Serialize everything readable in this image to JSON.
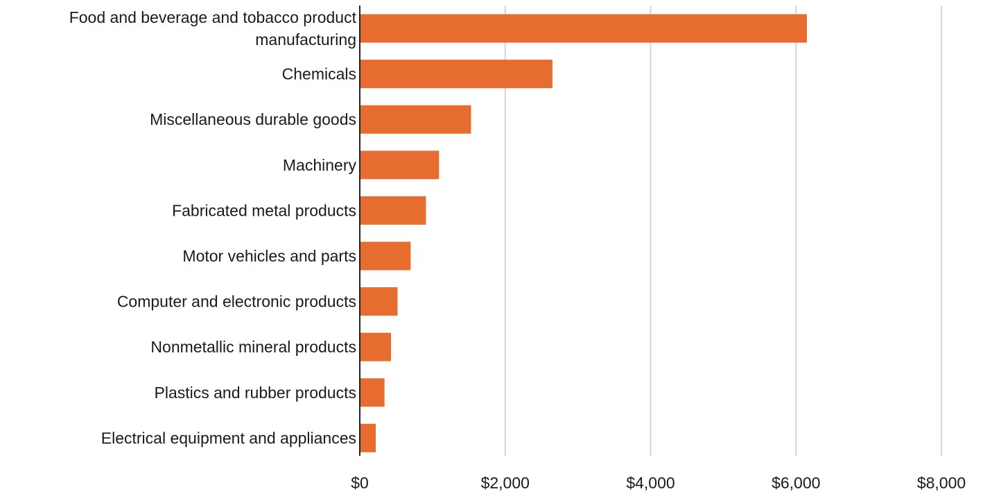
{
  "chart_data": {
    "type": "bar",
    "orientation": "horizontal",
    "categories": [
      "Food and beverage and tobacco product manufacturing",
      "Chemicals",
      "Miscellaneous durable goods",
      "Machinery",
      "Fabricated metal products",
      "Motor vehicles and parts",
      "Computer and electronic products",
      "Nonmetallic mineral products",
      "Plastics and rubber products",
      "Electrical equipment and appliances"
    ],
    "values": [
      6150,
      2650,
      1530,
      1090,
      910,
      700,
      520,
      430,
      340,
      220
    ],
    "xticks": [
      0,
      2000,
      4000,
      6000,
      8000
    ],
    "xtick_labels": [
      "$0",
      "$2,000",
      "$4,000",
      "$6,000",
      "$8,000"
    ],
    "xlim": [
      0,
      8000
    ],
    "title": "",
    "xlabel": "",
    "ylabel": "",
    "grid": "vertical",
    "legend": "none",
    "colors": {
      "bar": "#e66c30",
      "grid": "#d4d4d4",
      "axis": "#222222",
      "text": "#1a1a1a"
    }
  }
}
